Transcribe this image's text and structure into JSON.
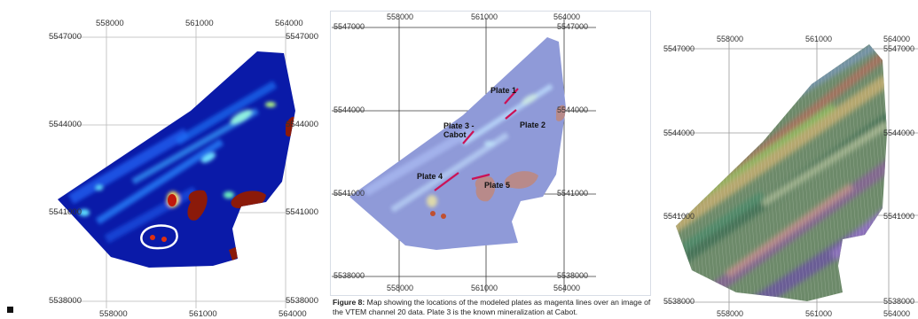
{
  "panels": [
    {
      "id": "left",
      "eastings_top": [
        "558000",
        "561000",
        "564000"
      ],
      "eastings_bottom": [
        "558000",
        "561000",
        "564000"
      ],
      "northings_left": [
        "5547000",
        "5544000",
        "5541000",
        "5538000"
      ],
      "northings_right": [
        "5547000",
        "5544000",
        "5541000",
        "5538000"
      ]
    },
    {
      "id": "middle",
      "eastings_top": [
        "558000",
        "561000",
        "564000"
      ],
      "eastings_bottom": [
        "558000",
        "561000",
        "564000"
      ],
      "northings_left": [
        "5547000",
        "5544000",
        "5541000",
        "5538000"
      ],
      "northings_right": [
        "5547000",
        "5544000",
        "5541000",
        "5538000"
      ],
      "plates": [
        {
          "label": "Plate 1"
        },
        {
          "label": "Plate 2"
        },
        {
          "label": "Plate 3 -\nCabot"
        },
        {
          "label": "Plate 4"
        },
        {
          "label": "Plate 5"
        }
      ]
    },
    {
      "id": "right",
      "eastings_top": [
        "558000",
        "561000",
        "564000"
      ],
      "eastings_bottom": [
        "558000",
        "561000",
        "564000"
      ],
      "northings_left": [
        "5547000",
        "5544000",
        "5541000",
        "5538000"
      ],
      "northings_right": [
        "5547000",
        "5544000",
        "5541000",
        "5538000"
      ]
    }
  ],
  "caption": {
    "prefix": "Figure 8:",
    "text": " Map showing the locations of the modeled plates as magenta lines over an image of the VTEM channel 20 data. Plate 3 is the known mineralization at Cabot."
  },
  "colors": {
    "vtem_background": "#0a1aa8",
    "vtem_anomaly_high": "#8b1a0a",
    "plate_lines": "#cc1155",
    "overlay_tint": "#8f9ad8"
  }
}
